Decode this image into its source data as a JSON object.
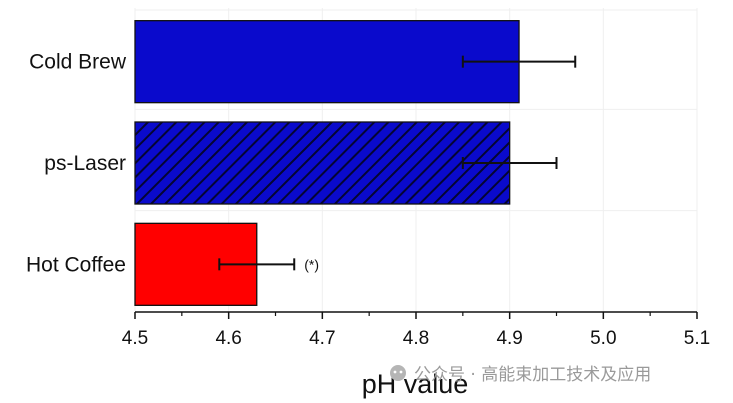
{
  "chart_data": {
    "type": "bar",
    "orientation": "horizontal",
    "categories": [
      "Cold Brew",
      "ps-Laser",
      "Hot Coffee"
    ],
    "values": [
      4.91,
      4.9,
      4.63
    ],
    "errors": [
      0.06,
      0.05,
      0.04
    ],
    "colors": [
      "#0a0acc",
      "#0a0acc",
      "#ff0000"
    ],
    "patterns": [
      "solid",
      "diagonal-hatch",
      "solid"
    ],
    "annotations": [
      "",
      "",
      "(*)"
    ],
    "xlabel": "pH value",
    "ylabel": "",
    "title": "",
    "xlim": [
      4.5,
      5.1
    ],
    "xticks": [
      "4.5",
      "4.6",
      "4.7",
      "4.8",
      "4.9",
      "5.0",
      "5.1"
    ],
    "grid": true,
    "legend": "none"
  },
  "watermark": {
    "text": "公众号 · 高能束加工技术及应用",
    "icon": "wechat-icon"
  }
}
